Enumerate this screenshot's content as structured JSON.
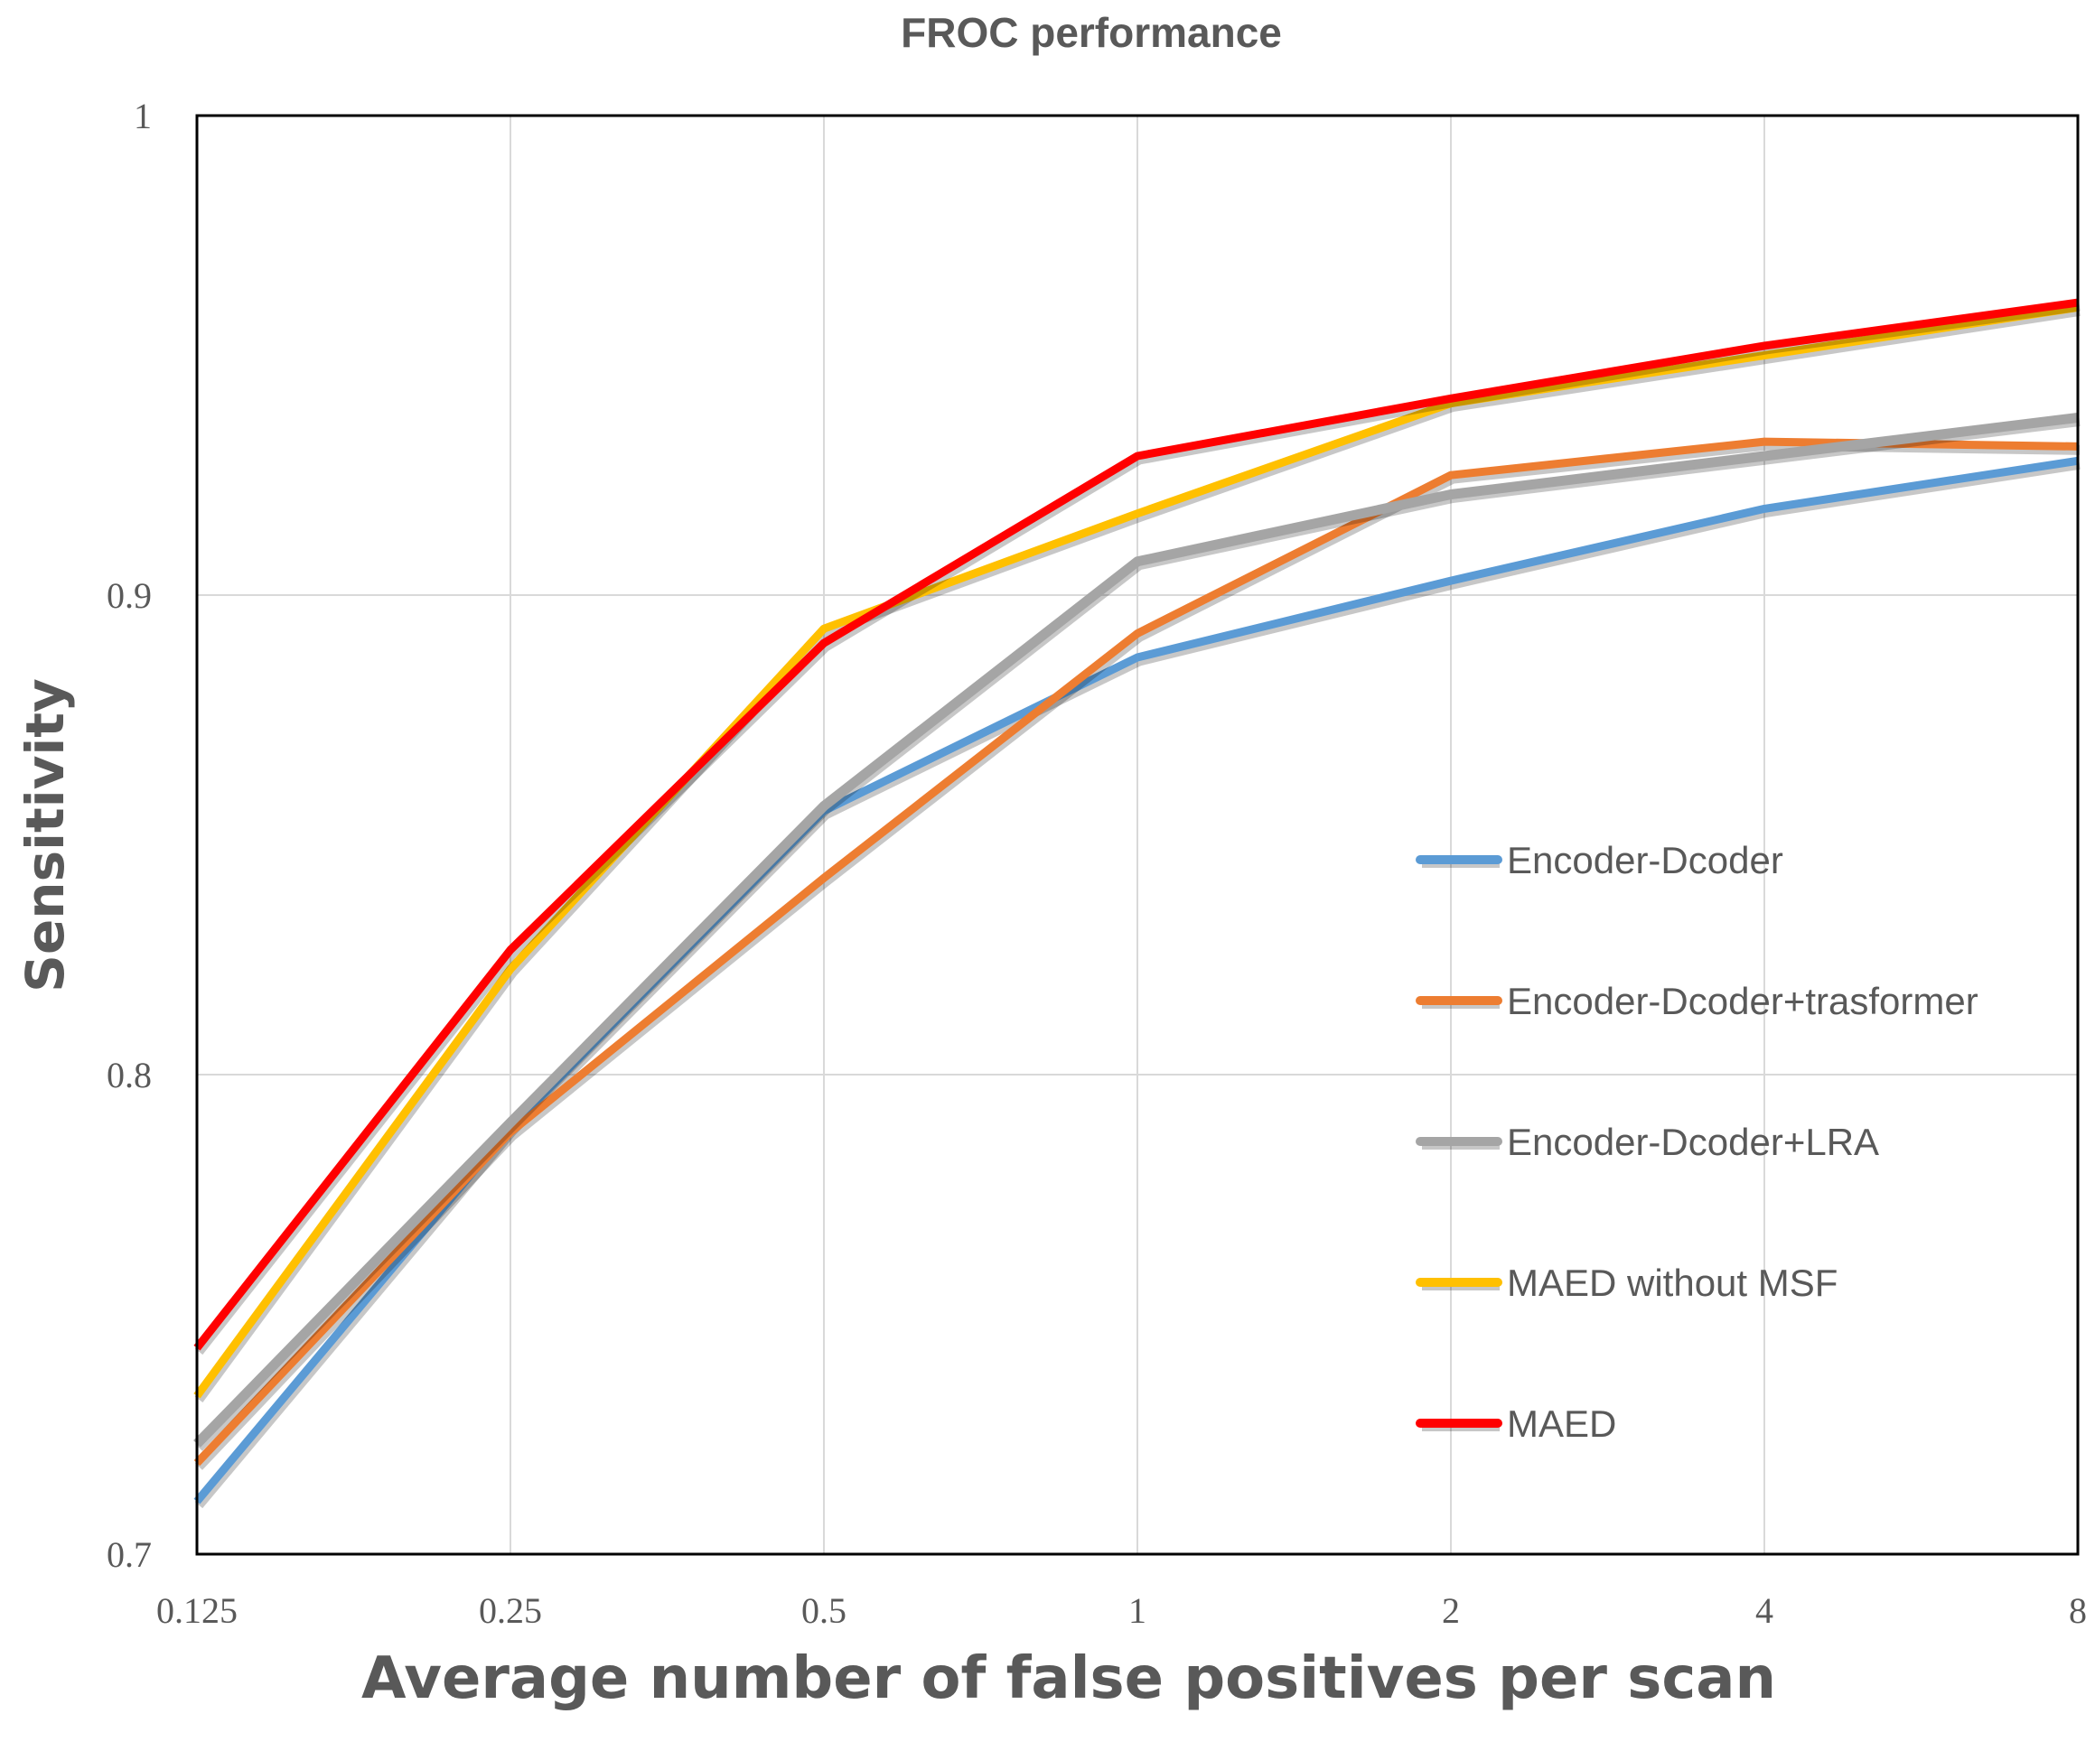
{
  "chart_data": {
    "type": "line",
    "title": "FROC performance",
    "xlabel": "Average number of false positives per scan",
    "ylabel": "Sensitivity",
    "categories": [
      "0.125",
      "0.25",
      "0.5",
      "1",
      "2",
      "4",
      "8"
    ],
    "yticks": [
      "0.7",
      "0.8",
      "0.9",
      "1"
    ],
    "ylim": [
      0.7,
      1.0
    ],
    "grid": true,
    "legend_position": "right-middle",
    "series": [
      {
        "name": "Encoder-Dcoder",
        "color": "#5b9bd5",
        "values": [
          0.711,
          0.789,
          0.855,
          0.887,
          0.903,
          0.918,
          0.928
        ]
      },
      {
        "name": "Encoder-Dcoder+trasformer",
        "color": "#ed7d31",
        "values": [
          0.719,
          0.788,
          0.841,
          0.892,
          0.925,
          0.932,
          0.931
        ]
      },
      {
        "name": "Encoder-Dcoder+LRA",
        "color": "#a5a5a5",
        "values": [
          0.723,
          0.79,
          0.856,
          0.907,
          0.921,
          0.929,
          0.937
        ]
      },
      {
        "name": "MAED without MSF",
        "color": "#ffc000",
        "values": [
          0.733,
          0.822,
          0.893,
          0.917,
          0.94,
          0.95,
          0.96
        ]
      },
      {
        "name": "MAED",
        "color": "#ff0000",
        "values": [
          0.743,
          0.826,
          0.89,
          0.929,
          0.941,
          0.952,
          0.961
        ]
      }
    ]
  }
}
